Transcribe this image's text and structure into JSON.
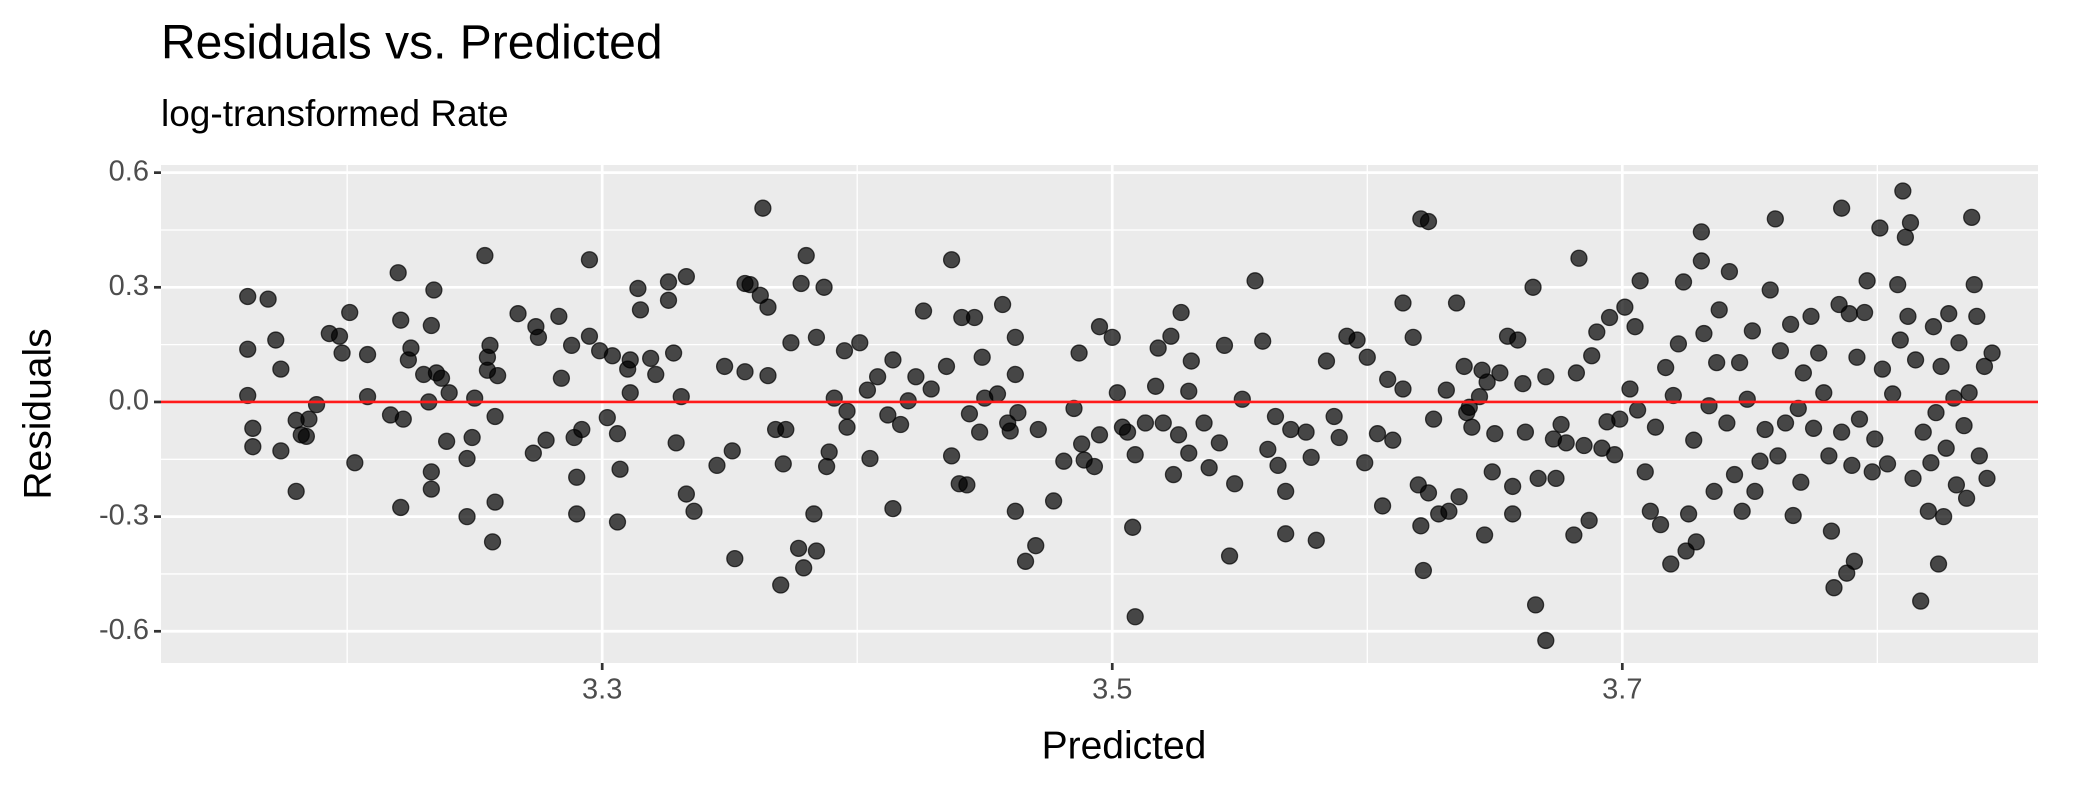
{
  "chart_data": {
    "type": "scatter",
    "title": "Residuals vs. Predicted",
    "subtitle": "log-transformed Rate",
    "x_label": "Predicted",
    "y_label": "Residuals",
    "xlim": [
      3.127,
      3.863
    ],
    "ylim": [
      -0.683,
      0.62
    ],
    "xticks": [
      3.3,
      3.5,
      3.7
    ],
    "yticks": [
      0.6,
      0.3,
      {
        "value": 0,
        "label": "0.0"
      },
      -0.3,
      -0.6
    ],
    "minor_xticks": [
      3.2,
      3.4,
      3.6,
      3.8
    ],
    "minor_yticks": [
      0.45,
      0.15,
      -0.15,
      -0.45
    ],
    "grid": true,
    "panel_color": "#ebebeb",
    "point_color": "#000000",
    "point_opacity": 0.7,
    "hline": 0,
    "hline_color": "#ff1a1a",
    "x": [
      3.161,
      3.169,
      3.161,
      3.161,
      3.163,
      3.163,
      3.172,
      3.174,
      3.174,
      3.18,
      3.18,
      3.182,
      3.184,
      3.185,
      3.188,
      3.193,
      3.197,
      3.198,
      3.201,
      3.203,
      3.208,
      3.208,
      3.22,
      3.221,
      3.221,
      3.224,
      3.225,
      3.217,
      3.222,
      3.23,
      3.232,
      3.233,
      3.233,
      3.234,
      3.233,
      3.235,
      3.237,
      3.24,
      3.239,
      3.247,
      3.247,
      3.249,
      3.25,
      3.254,
      3.255,
      3.256,
      3.255,
      3.257,
      3.258,
      3.258,
      3.259,
      3.267,
      3.273,
      3.274,
      3.275,
      3.278,
      3.283,
      3.284,
      3.288,
      3.289,
      3.29,
      3.29,
      3.292,
      3.295,
      3.295,
      3.299,
      3.302,
      3.304,
      3.306,
      3.306,
      3.307,
      3.31,
      3.311,
      3.314,
      3.315,
      3.311,
      3.319,
      3.321,
      3.326,
      3.326,
      3.328,
      3.329,
      3.331,
      3.333,
      3.333,
      3.336,
      3.345,
      3.348,
      3.352,
      3.351,
      3.356,
      3.358,
      3.356,
      3.362,
      3.363,
      3.365,
      3.365,
      3.368,
      3.37,
      3.371,
      3.372,
      3.374,
      3.377,
      3.378,
      3.38,
      3.379,
      3.383,
      3.384,
      3.384,
      3.387,
      3.388,
      3.389,
      3.391,
      3.395,
      3.396,
      3.396,
      3.401,
      3.404,
      3.405,
      3.408,
      3.412,
      3.414,
      3.414,
      3.417,
      3.42,
      3.423,
      3.426,
      3.429,
      3.435,
      3.437,
      3.437,
      3.44,
      3.441,
      3.443,
      3.444,
      3.446,
      3.448,
      3.449,
      3.45,
      3.455,
      3.457,
      3.459,
      3.46,
      3.462,
      3.462,
      3.463,
      3.462,
      3.466,
      3.47,
      3.471,
      3.477,
      3.481,
      3.485,
      3.487,
      3.488,
      3.489,
      3.493,
      3.495,
      3.495,
      3.5,
      3.502,
      3.504,
      3.506,
      3.508,
      3.509,
      3.509,
      3.513,
      3.517,
      3.518,
      3.52,
      3.523,
      3.524,
      3.526,
      3.527,
      3.53,
      3.53,
      3.531,
      3.536,
      3.538,
      3.542,
      3.544,
      3.546,
      3.548,
      3.551,
      3.556,
      3.559,
      3.561,
      3.564,
      3.565,
      3.568,
      3.568,
      3.57,
      3.576,
      3.578,
      3.58,
      3.584,
      3.587,
      3.589,
      3.592,
      3.596,
      3.599,
      3.6,
      3.604,
      3.606,
      3.608,
      3.61,
      3.614,
      3.614,
      3.618,
      3.62,
      3.621,
      3.621,
      3.624,
      3.622,
      3.624,
      3.626,
      3.628,
      3.631,
      3.632,
      3.635,
      3.636,
      3.638,
      3.639,
      3.64,
      3.641,
      3.644,
      3.645,
      3.646,
      3.647,
      3.649,
      3.65,
      3.652,
      3.655,
      3.657,
      3.657,
      3.659,
      3.661,
      3.662,
      3.665,
      3.666,
      3.667,
      3.67,
      3.67,
      3.673,
      3.674,
      3.676,
      3.678,
      3.681,
      3.682,
      3.683,
      3.685,
      3.687,
      3.688,
      3.69,
      3.692,
      3.694,
      3.695,
      3.697,
      3.699,
      3.701,
      3.703,
      3.705,
      3.706,
      3.707,
      3.709,
      3.711,
      3.713,
      3.715,
      3.717,
      3.719,
      3.72,
      3.722,
      3.724,
      3.725,
      3.726,
      3.728,
      3.729,
      3.731,
      3.731,
      3.732,
      3.734,
      3.736,
      3.737,
      3.738,
      3.741,
      3.742,
      3.744,
      3.746,
      3.747,
      3.749,
      3.751,
      3.752,
      3.754,
      3.756,
      3.758,
      3.76,
      3.761,
      3.762,
      3.764,
      3.766,
      3.767,
      3.769,
      3.77,
      3.771,
      3.774,
      3.775,
      3.777,
      3.779,
      3.781,
      3.782,
      3.783,
      3.785,
      3.786,
      3.786,
      3.788,
      3.789,
      3.79,
      3.791,
      3.792,
      3.793,
      3.795,
      3.796,
      3.798,
      3.799,
      3.801,
      3.802,
      3.804,
      3.806,
      3.808,
      3.809,
      3.81,
      3.811,
      3.812,
      3.813,
      3.814,
      3.815,
      3.817,
      3.818,
      3.82,
      3.821,
      3.822,
      3.823,
      3.824,
      3.825,
      3.826,
      3.827,
      3.828,
      3.83,
      3.831,
      3.832,
      3.834,
      3.835,
      3.836,
      3.837,
      3.838,
      3.839,
      3.84,
      3.842,
      3.843,
      3.845
    ],
    "y": [
      0.276,
      0.269,
      0.138,
      0.017,
      -0.069,
      -0.117,
      0.162,
      0.086,
      -0.128,
      -0.234,
      -0.048,
      -0.086,
      -0.09,
      -0.045,
      -0.007,
      0.179,
      0.172,
      0.128,
      0.234,
      -0.159,
      0.014,
      0.124,
      0.338,
      0.214,
      -0.276,
      0.11,
      0.141,
      -0.034,
      -0.045,
      0.072,
      0.0,
      -0.183,
      -0.228,
      0.293,
      0.2,
      0.076,
      0.062,
      0.024,
      -0.103,
      -0.148,
      -0.3,
      -0.093,
      0.01,
      0.383,
      0.117,
      0.148,
      0.083,
      -0.366,
      -0.038,
      -0.262,
      0.069,
      0.231,
      -0.134,
      0.197,
      0.169,
      -0.1,
      0.224,
      0.062,
      0.148,
      -0.093,
      -0.197,
      -0.293,
      -0.072,
      0.372,
      0.172,
      0.134,
      -0.041,
      0.121,
      -0.083,
      -0.314,
      -0.176,
      0.086,
      0.11,
      0.297,
      0.241,
      0.024,
      0.114,
      0.072,
      0.266,
      0.314,
      0.128,
      -0.107,
      0.014,
      0.328,
      -0.241,
      -0.286,
      -0.166,
      0.093,
      -0.41,
      -0.128,
      0.31,
      0.307,
      0.079,
      0.279,
      0.507,
      0.248,
      0.069,
      -0.072,
      -0.479,
      -0.162,
      -0.072,
      0.155,
      -0.383,
      0.31,
      0.383,
      -0.434,
      -0.293,
      0.169,
      -0.39,
      0.3,
      -0.169,
      -0.131,
      0.01,
      0.134,
      -0.066,
      -0.024,
      0.155,
      0.031,
      -0.148,
      0.066,
      -0.034,
      -0.279,
      0.11,
      -0.059,
      0.003,
      0.066,
      0.238,
      0.034,
      0.093,
      0.372,
      -0.141,
      -0.214,
      0.221,
      -0.217,
      -0.031,
      0.221,
      -0.079,
      0.117,
      0.01,
      0.021,
      0.255,
      -0.055,
      -0.076,
      0.072,
      0.169,
      -0.028,
      -0.286,
      -0.417,
      -0.376,
      -0.072,
      -0.259,
      -0.155,
      -0.017,
      0.128,
      -0.11,
      -0.152,
      -0.169,
      0.197,
      -0.086,
      0.169,
      0.024,
      -0.066,
      -0.079,
      -0.328,
      -0.562,
      -0.138,
      -0.055,
      0.041,
      0.141,
      -0.055,
      0.172,
      -0.19,
      -0.086,
      0.234,
      0.028,
      -0.134,
      0.107,
      -0.055,
      -0.172,
      -0.107,
      0.148,
      -0.403,
      -0.214,
      0.007,
      0.317,
      0.159,
      -0.124,
      -0.038,
      -0.166,
      -0.234,
      -0.345,
      -0.072,
      -0.079,
      -0.145,
      -0.362,
      0.107,
      -0.038,
      -0.093,
      0.172,
      0.162,
      -0.159,
      0.117,
      -0.083,
      -0.272,
      0.059,
      -0.1,
      0.034,
      0.259,
      0.169,
      -0.217,
      -0.324,
      0.479,
      0.472,
      -0.441,
      -0.238,
      -0.045,
      -0.293,
      0.031,
      -0.286,
      0.259,
      -0.248,
      0.093,
      -0.028,
      -0.014,
      -0.066,
      0.014,
      0.083,
      -0.348,
      0.052,
      -0.183,
      -0.083,
      0.076,
      0.172,
      -0.221,
      -0.293,
      0.162,
      0.048,
      -0.079,
      0.3,
      -0.531,
      -0.2,
      0.066,
      -0.624,
      -0.097,
      -0.2,
      -0.059,
      -0.107,
      -0.348,
      0.076,
      0.376,
      -0.114,
      -0.31,
      0.121,
      0.183,
      -0.121,
      -0.052,
      0.221,
      -0.138,
      -0.045,
      0.248,
      0.034,
      0.197,
      -0.021,
      0.317,
      -0.183,
      -0.286,
      -0.066,
      -0.321,
      0.09,
      -0.424,
      0.017,
      0.152,
      0.314,
      -0.39,
      -0.293,
      -0.1,
      -0.366,
      0.369,
      0.445,
      0.179,
      -0.01,
      -0.234,
      0.103,
      0.241,
      -0.055,
      0.341,
      -0.19,
      0.103,
      -0.286,
      0.007,
      0.186,
      -0.234,
      -0.155,
      -0.072,
      0.293,
      0.479,
      -0.141,
      0.134,
      -0.055,
      0.203,
      -0.297,
      -0.017,
      -0.21,
      0.076,
      0.224,
      -0.069,
      0.128,
      0.024,
      -0.141,
      -0.338,
      -0.486,
      0.255,
      -0.079,
      0.507,
      -0.448,
      0.231,
      -0.166,
      -0.417,
      0.117,
      -0.045,
      0.234,
      0.317,
      -0.183,
      -0.097,
      0.455,
      0.086,
      -0.162,
      0.021,
      0.307,
      0.162,
      0.552,
      0.431,
      0.224,
      0.469,
      -0.2,
      0.11,
      -0.521,
      -0.079,
      -0.286,
      -0.159,
      0.197,
      -0.028,
      -0.424,
      0.093,
      -0.3,
      -0.121,
      0.231,
      0.01,
      -0.217,
      0.155,
      -0.062,
      -0.252,
      0.024,
      0.483,
      0.307,
      0.224,
      -0.141,
      0.093,
      -0.2,
      0.128
    ]
  }
}
